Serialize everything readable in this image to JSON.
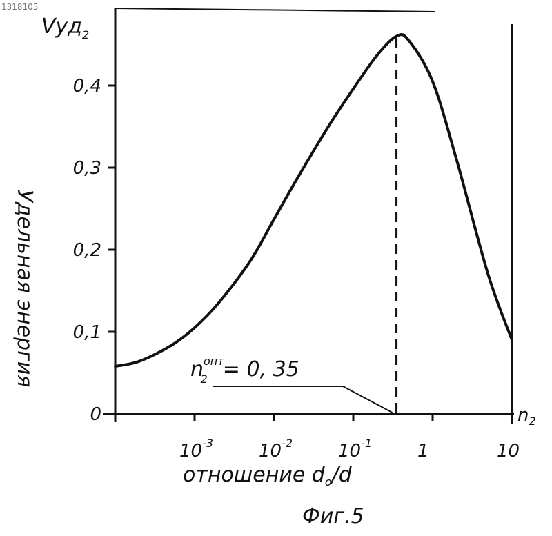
{
  "chart_data": {
    "type": "line",
    "x_scale": "log",
    "xlim": [
      0.0001,
      10
    ],
    "ylim": [
      0,
      0.47
    ],
    "x_ticks": [
      {
        "value": 0.001,
        "base": "10",
        "exp": "-3"
      },
      {
        "value": 0.01,
        "base": "10",
        "exp": "-2"
      },
      {
        "value": 0.1,
        "base": "10",
        "exp": "-1"
      },
      {
        "value": 1,
        "base": "1",
        "exp": ""
      },
      {
        "value": 10,
        "base": "10",
        "exp": ""
      }
    ],
    "y_ticks": [
      {
        "value": 0,
        "label": "0"
      },
      {
        "value": 0.1,
        "label": "0,1"
      },
      {
        "value": 0.2,
        "label": "0,2"
      },
      {
        "value": 0.3,
        "label": "0,3"
      },
      {
        "value": 0.4,
        "label": "0,4"
      }
    ],
    "series": [
      {
        "x": [
          0.0001,
          0.0002,
          0.0005,
          0.001,
          0.002,
          0.005,
          0.01,
          0.02,
          0.05,
          0.1,
          0.2,
          0.35,
          0.5,
          1,
          2,
          5,
          10
        ],
        "y": [
          0.058,
          0.064,
          0.083,
          0.105,
          0.135,
          0.186,
          0.237,
          0.288,
          0.352,
          0.396,
          0.437,
          0.46,
          0.455,
          0.405,
          0.31,
          0.17,
          0.09
        ]
      }
    ],
    "optimum_x": 0.35,
    "ylabel_top": "Vуд",
    "ylabel_top_sub": "2",
    "ylabel": "Удельная энергия",
    "xlabel": "отношение d",
    "xlabel_sub": "o",
    "xlabel_end": "/d",
    "right_axis_label": "n",
    "right_axis_label_sub": "2",
    "annotation": {
      "symbol": "n",
      "sub": "2",
      "sup": "опт",
      "text": "= 0, 35"
    },
    "caption": "Фиг.5",
    "corner_text": "1318105"
  }
}
